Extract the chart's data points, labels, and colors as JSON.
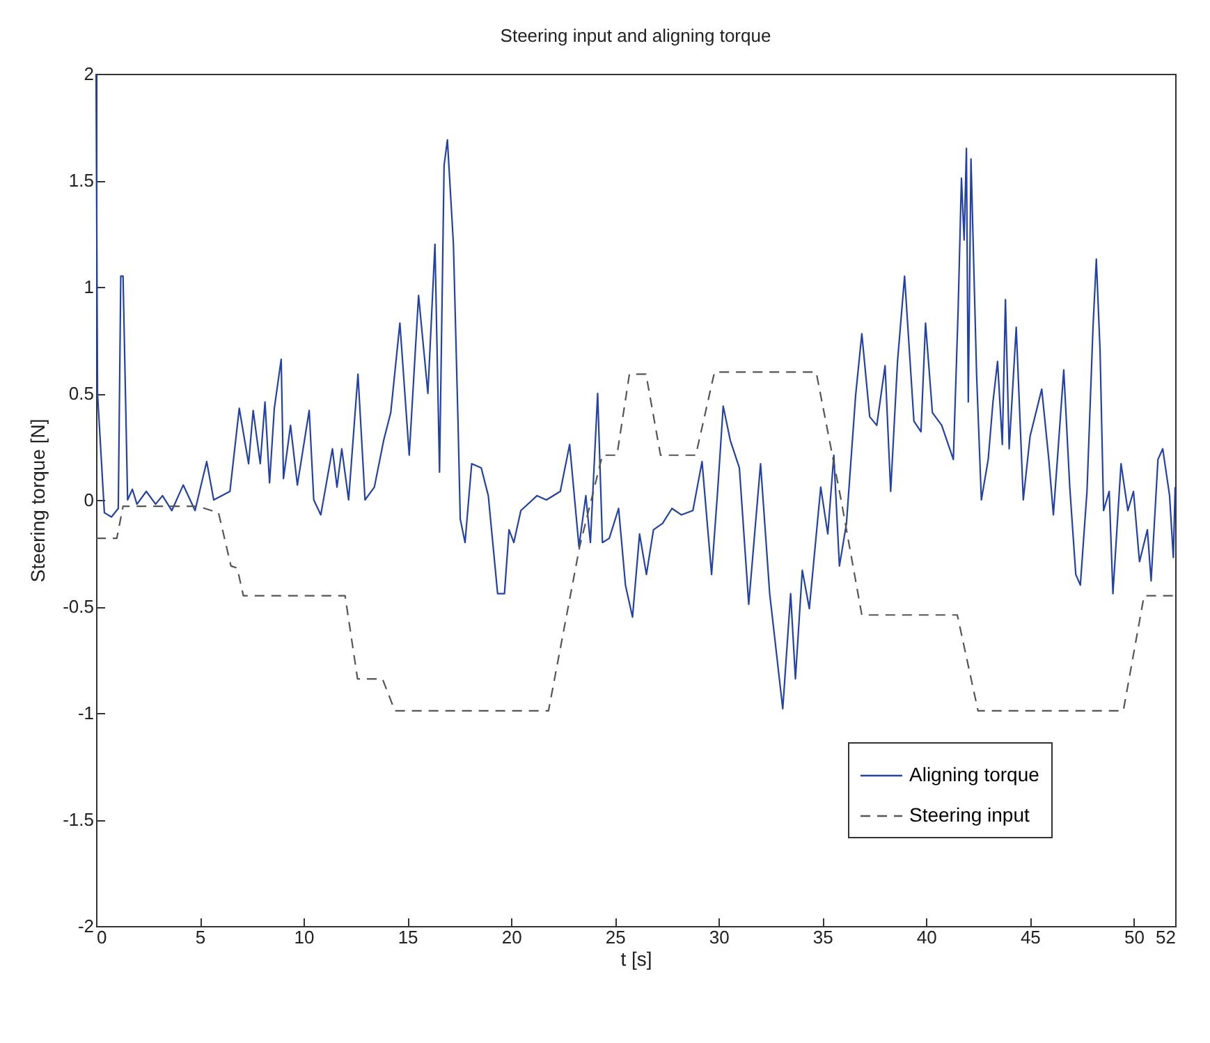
{
  "chart_data": {
    "type": "line",
    "title": "Steering input and aligning torque",
    "xlabel": "t [s]",
    "ylabel": "Steering torque [N]",
    "xlim": [
      0,
      52
    ],
    "xticks": [
      0,
      5,
      10,
      15,
      20,
      25,
      30,
      35,
      40,
      45,
      50,
      52
    ],
    "ylim": [
      -2,
      2
    ],
    "yticks": [
      -2,
      -1.5,
      -1,
      -0.5,
      0,
      0.5,
      1,
      1.5,
      2
    ],
    "grid": false,
    "legend": "bottom right",
    "marker": "none",
    "series": [
      {
        "name": "Aligning torque",
        "color": "#2342a8",
        "line_style": "solid",
        "x": [
          0,
          0.07,
          0.4,
          0.74,
          1.07,
          1.19,
          1.3,
          1.52,
          1.75,
          1.97,
          2.42,
          2.87,
          3.2,
          3.65,
          4.2,
          4.77,
          5.33,
          5.67,
          6.45,
          6.9,
          7.35,
          7.57,
          7.91,
          8.14,
          8.36,
          8.59,
          8.92,
          9.03,
          9.37,
          9.7,
          10.27,
          10.49,
          10.83,
          11.39,
          11.61,
          11.84,
          12.17,
          12.62,
          12.96,
          13.41,
          13.86,
          14.2,
          14.64,
          15.09,
          15.54,
          15.99,
          16.33,
          16.55,
          16.77,
          16.93,
          17.22,
          17.44,
          17.55,
          17.78,
          18.1,
          18.56,
          18.9,
          19.35,
          19.68,
          19.9,
          20.13,
          20.47,
          21.25,
          21.7,
          22.37,
          22.82,
          23.27,
          23.6,
          23.82,
          24.17,
          24.4,
          24.73,
          25.18,
          25.51,
          25.85,
          26.19,
          26.52,
          26.86,
          27.3,
          27.75,
          28.2,
          28.76,
          29.2,
          29.66,
          29.95,
          30.22,
          30.56,
          31.0,
          31.45,
          32.02,
          32.46,
          33.09,
          33.47,
          33.7,
          34.03,
          34.37,
          34.92,
          35.26,
          35.55,
          35.82,
          36.16,
          36.6,
          36.9,
          37.28,
          37.62,
          38.02,
          38.29,
          38.62,
          38.96,
          39.41,
          39.75,
          39.97,
          40.3,
          40.75,
          41.31,
          41.54,
          41.7,
          41.83,
          41.94,
          42.03,
          42.16,
          42.43,
          42.66,
          42.99,
          43.22,
          43.44,
          43.67,
          43.82,
          44.0,
          44.34,
          44.68,
          45.01,
          45.57,
          45.91,
          46.13,
          46.36,
          46.63,
          46.92,
          47.21,
          47.43,
          47.75,
          48.04,
          48.2,
          48.38,
          48.55,
          48.82,
          49.0,
          49.39,
          49.72,
          49.99,
          50.28,
          50.66,
          50.84,
          51.17,
          51.4,
          51.73,
          51.91,
          52.0
        ],
        "values": [
          2.0,
          0.5,
          -0.06,
          -0.08,
          -0.04,
          1.05,
          1.05,
          0.0,
          0.05,
          -0.02,
          0.04,
          -0.02,
          0.02,
          -0.05,
          0.07,
          -0.05,
          0.18,
          0.0,
          0.04,
          0.43,
          0.17,
          0.42,
          0.17,
          0.46,
          0.08,
          0.43,
          0.66,
          0.1,
          0.35,
          0.07,
          0.42,
          0.0,
          -0.07,
          0.24,
          0.06,
          0.24,
          0.0,
          0.59,
          0.0,
          0.06,
          0.28,
          0.41,
          0.83,
          0.21,
          0.96,
          0.5,
          1.2,
          0.13,
          1.57,
          1.69,
          1.2,
          0.37,
          -0.09,
          -0.2,
          0.17,
          0.15,
          0.02,
          -0.44,
          -0.44,
          -0.14,
          -0.2,
          -0.05,
          0.02,
          0.0,
          0.04,
          0.26,
          -0.22,
          0.02,
          -0.2,
          0.5,
          -0.2,
          -0.18,
          -0.04,
          -0.4,
          -0.55,
          -0.16,
          -0.35,
          -0.14,
          -0.11,
          -0.04,
          -0.07,
          -0.05,
          0.18,
          -0.35,
          0.04,
          0.44,
          0.28,
          0.15,
          -0.49,
          0.17,
          -0.44,
          -0.98,
          -0.44,
          -0.84,
          -0.33,
          -0.51,
          0.06,
          -0.16,
          0.21,
          -0.31,
          -0.11,
          0.49,
          0.78,
          0.39,
          0.35,
          0.63,
          0.04,
          0.65,
          1.05,
          0.37,
          0.32,
          0.83,
          0.41,
          0.35,
          0.19,
          0.89,
          1.51,
          1.22,
          1.65,
          0.46,
          1.6,
          0.59,
          0.0,
          0.19,
          0.46,
          0.65,
          0.26,
          0.94,
          0.24,
          0.81,
          0.0,
          0.3,
          0.52,
          0.19,
          -0.07,
          0.24,
          0.61,
          0.06,
          -0.35,
          -0.4,
          0.04,
          0.81,
          1.13,
          0.7,
          -0.05,
          0.04,
          -0.44,
          0.17,
          -0.05,
          0.04,
          -0.29,
          -0.14,
          -0.38,
          0.19,
          0.24,
          0.02,
          -0.27,
          0.06
        ]
      },
      {
        "name": "Steering input",
        "color": "#555555",
        "line_style": "dashed",
        "x": [
          0,
          1.0,
          1.3,
          4.9,
          5.9,
          6.5,
          6.8,
          7.1,
          12.0,
          12.6,
          13.8,
          14.4,
          21.8,
          23.3,
          24.4,
          25.1,
          25.7,
          26.5,
          27.2,
          28.9,
          29.8,
          34.7,
          35.9,
          36.9,
          41.5,
          42.5,
          49.5,
          50.5,
          52.0
        ],
        "values": [
          -0.18,
          -0.18,
          -0.03,
          -0.03,
          -0.06,
          -0.31,
          -0.32,
          -0.45,
          -0.45,
          -0.84,
          -0.84,
          -0.99,
          -0.99,
          -0.22,
          0.21,
          0.21,
          0.59,
          0.59,
          0.21,
          0.21,
          0.6,
          0.6,
          0.0,
          -0.54,
          -0.54,
          -0.99,
          -0.99,
          -0.45,
          -0.45
        ]
      }
    ]
  }
}
